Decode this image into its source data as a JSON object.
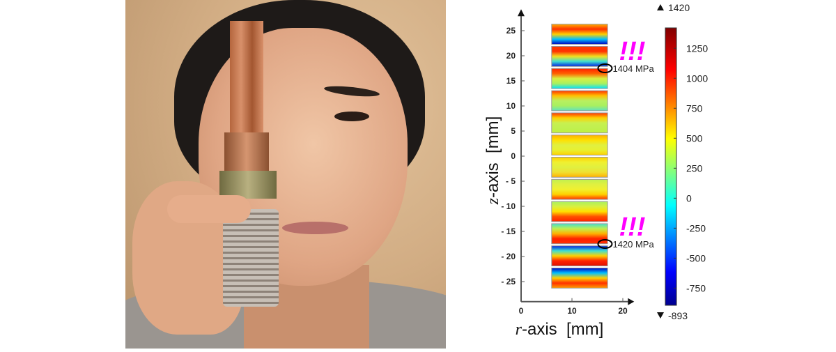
{
  "photo": {
    "description_icon": "person-holding-device-photo"
  },
  "chart_data": {
    "type": "heatmap",
    "xlabel_var": "r",
    "xlabel_rest": "-axis  [mm]",
    "ylabel_var": "z",
    "ylabel_rest": "-axis  [mm]",
    "xticks": [
      0,
      10,
      20
    ],
    "yticks": [
      25,
      20,
      15,
      10,
      5,
      0,
      -5,
      -10,
      -15,
      -20,
      -25
    ],
    "ytick_labels": [
      "25",
      "20",
      "15",
      "10",
      "5",
      "0",
      "- 5",
      "- 10",
      "- 15",
      "- 20",
      "- 25"
    ],
    "xlim": [
      0,
      21
    ],
    "ylim": [
      -29,
      29
    ],
    "block_r_range": [
      6,
      17
    ],
    "blocks": 12,
    "colorbar": {
      "min": -893,
      "max": 1420,
      "max_label": "1420",
      "min_label": "-893",
      "ticks": [
        1250,
        1000,
        750,
        500,
        250,
        0,
        -250,
        -500,
        -750
      ],
      "colormap": "jet"
    },
    "annotations": [
      {
        "text": "!!!",
        "label": "1404 MPa",
        "r": 16.5,
        "z": 17.5,
        "color": "#ff00ff"
      },
      {
        "text": "!!!",
        "label": "1420 MPa",
        "r": 16.5,
        "z": -17.5,
        "color": "#ff00ff"
      }
    ]
  }
}
